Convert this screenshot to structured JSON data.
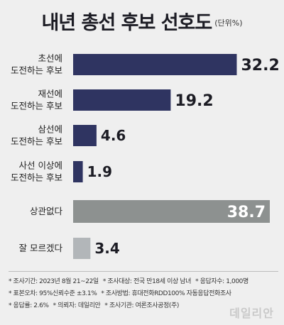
{
  "chart_data": {
    "type": "bar",
    "orientation": "horizontal",
    "title": "내년 총선 후보 선호도",
    "unit": "(단위%)",
    "categories": [
      [
        "초선에",
        "도전하는 후보"
      ],
      [
        "재선에",
        "도전하는 후보"
      ],
      [
        "삼선에",
        "도전하는 후보"
      ],
      [
        "사선 이상에",
        "도전하는 후보"
      ],
      [
        "상관없다"
      ],
      [
        "잘 모르겠다"
      ]
    ],
    "values": [
      32.2,
      19.2,
      4.6,
      1.9,
      38.7,
      3.4
    ],
    "value_labels": [
      "32.2",
      "19.2",
      "4.6",
      "1.9",
      "38.7",
      "3.4"
    ],
    "bar_colors": [
      "#2f3461",
      "#2f3461",
      "#2f3461",
      "#2f3461",
      "#8d9190",
      "#b2b6b9"
    ],
    "xlim": [
      0,
      38.7
    ],
    "grid": false,
    "legend": "none"
  },
  "notes": {
    "rows": [
      [
        "* 조사기간: 2023년 8월 21~22일",
        "* 조사대상: 전국 만18세 이상 남녀",
        "* 응답자수: 1,000명"
      ],
      [
        "* 표본오차: 95%신뢰수준 ±3.1%",
        "* 조사방법: 휴대전화RDD100% 자동응답전화조사"
      ],
      [
        "* 응답률: 2.6%",
        "* 의뢰자: 데일리안",
        "* 조사기관: 여론조사공정(주)"
      ]
    ]
  },
  "watermark": "데일리안"
}
